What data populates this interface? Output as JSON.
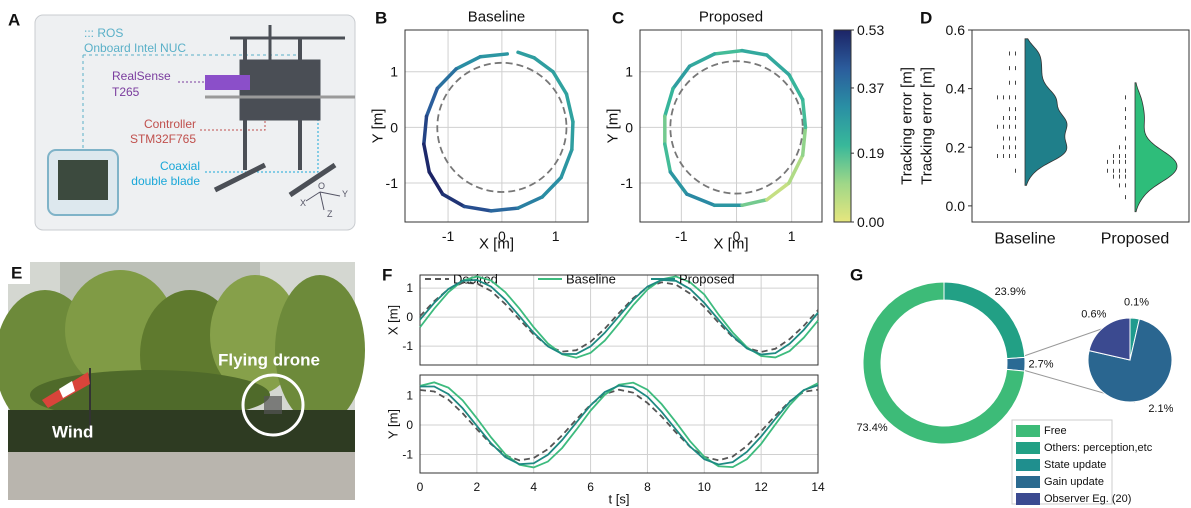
{
  "panel_a": {
    "letter": "A",
    "ros": "::: ROS",
    "nuc": "Onboard Intel NUC",
    "camera": [
      "RealSense",
      "T265"
    ],
    "controller": [
      "Controller",
      "STM32F765"
    ],
    "blade": [
      "Coaxial",
      "double blade"
    ],
    "frame_axes": [
      "O",
      "X",
      "Y",
      "Z"
    ]
  },
  "panel_e": {
    "letter": "E",
    "wind": "Wind",
    "drone": "Flying drone"
  },
  "chart_data": [
    {
      "type": "trajectory",
      "panel": "B",
      "title": "Baseline",
      "xlabel": "X [m]",
      "ylabel": "Y [m]",
      "xlim": [
        -1.8,
        1.6
      ],
      "ylim": [
        -1.7,
        1.75
      ],
      "xticks": [
        -1,
        0,
        1
      ],
      "yticks": [
        -1,
        0,
        1
      ],
      "grid": true,
      "desired_radius": 1.2,
      "clim": [
        0,
        0.53
      ],
      "colormap": [
        "#e6e67e",
        "#9fd788",
        "#38b89a",
        "#2a8fa4",
        "#2b5c9c",
        "#1c2466"
      ],
      "x": [
        0.1,
        -0.4,
        -0.85,
        -1.2,
        -1.4,
        -1.45,
        -1.35,
        -1.1,
        -0.7,
        -0.2,
        0.3,
        0.75,
        1.1,
        1.3,
        1.32,
        1.2,
        0.95,
        0.6,
        0.3
      ],
      "values": [
        1.32,
        1.27,
        1.05,
        0.7,
        0.2,
        -0.3,
        -0.8,
        -1.2,
        -1.42,
        -1.5,
        -1.45,
        -1.25,
        -0.9,
        -0.4,
        0.1,
        0.6,
        1.0,
        1.25,
        1.35
      ],
      "error": [
        0.3,
        0.32,
        0.38,
        0.42,
        0.47,
        0.52,
        0.53,
        0.5,
        0.45,
        0.4,
        0.35,
        0.32,
        0.3,
        0.28,
        0.27,
        0.27,
        0.28,
        0.28,
        0.29
      ]
    },
    {
      "type": "trajectory",
      "panel": "C",
      "title": "Proposed",
      "xlabel": "X [m]",
      "ylabel": "Y [m]",
      "xlim": [
        -1.75,
        1.55
      ],
      "ylim": [
        -1.7,
        1.75
      ],
      "xticks": [
        -1,
        0,
        1
      ],
      "yticks": [
        -1,
        0,
        1
      ],
      "grid": true,
      "desired_radius": 1.2,
      "clim": [
        0,
        0.53
      ],
      "colormap": [
        "#e6e67e",
        "#9fd788",
        "#38b89a",
        "#2a8fa4",
        "#2b5c9c",
        "#1c2466"
      ],
      "colorbar": {
        "ticks": [
          {
            "value": 0,
            "label": "0.00"
          },
          0.19,
          0.37,
          0.53
        ]
      },
      "x": [
        0.1,
        -0.4,
        -0.85,
        -1.15,
        -1.3,
        -1.3,
        -1.2,
        -0.9,
        -0.4,
        0.1,
        0.55,
        0.95,
        1.2,
        1.25,
        1.2,
        0.95,
        0.55,
        0.1
      ],
      "values": [
        1.38,
        1.32,
        1.1,
        0.7,
        0.2,
        -0.3,
        -0.8,
        -1.2,
        -1.4,
        -1.4,
        -1.3,
        -1.0,
        -0.5,
        0.0,
        0.5,
        0.95,
        1.3,
        1.38
      ],
      "error": [
        0.2,
        0.25,
        0.28,
        0.22,
        0.15,
        0.2,
        0.3,
        0.33,
        0.3,
        0.15,
        0.05,
        0.08,
        0.12,
        0.2,
        0.22,
        0.25,
        0.25,
        0.22
      ]
    },
    {
      "type": "violin",
      "panel": "D",
      "ylabels": [
        "Tracking error [m]",
        "Tracking error [m]"
      ],
      "ylim": [
        -0.055,
        0.6
      ],
      "yticks": [
        {
          "value": 0,
          "label": "0.0"
        },
        0.2,
        0.4,
        0.6
      ],
      "categories": [
        "Baseline",
        "Proposed"
      ],
      "series": [
        {
          "color": "#1f7f8a",
          "values": [
            0.12,
            0.17,
            0.17,
            0.17,
            0.17,
            0.2,
            0.2,
            0.2,
            0.23,
            0.23,
            0.23,
            0.27,
            0.27,
            0.27,
            0.27,
            0.3,
            0.3,
            0.3,
            0.33,
            0.33,
            0.37,
            0.37,
            0.37,
            0.37,
            0.42,
            0.42,
            0.47,
            0.47,
            0.52,
            0.52
          ]
        },
        {
          "color": "#2ebd7a",
          "values": [
            0.03,
            0.07,
            0.07,
            0.1,
            0.1,
            0.1,
            0.12,
            0.12,
            0.12,
            0.12,
            0.15,
            0.15,
            0.15,
            0.15,
            0.17,
            0.17,
            0.17,
            0.2,
            0.2,
            0.23,
            0.27,
            0.3,
            0.33,
            0.37
          ]
        }
      ]
    },
    {
      "type": "line",
      "panel": "F",
      "ylabel": "X [m]",
      "xlim": [
        0,
        14
      ],
      "ylim": [
        -1.65,
        1.45
      ],
      "xticks": [
        0,
        2,
        4,
        6,
        8,
        10,
        12,
        14
      ],
      "yticks": [
        -1,
        0,
        1
      ],
      "grid": true,
      "show_xticklabels": false,
      "x": [
        0,
        0.5,
        1,
        1.5,
        2,
        2.5,
        3,
        3.5,
        4,
        4.5,
        5,
        5.5,
        6,
        6.5,
        7,
        7.5,
        8,
        8.5,
        9,
        9.5,
        10,
        10.5,
        11,
        11.5,
        12,
        12.5,
        13,
        13.5,
        14
      ],
      "series": [
        {
          "name": "Desired",
          "color": "#555555",
          "linestyle": "dashed",
          "values": [
            0.03,
            0.55,
            0.96,
            1.18,
            1.16,
            0.9,
            0.45,
            -0.08,
            -0.6,
            -1.0,
            -1.19,
            -1.14,
            -0.85,
            -0.4,
            0.14,
            0.65,
            1.03,
            1.2,
            1.12,
            0.81,
            0.35,
            -0.19,
            -0.69,
            -1.06,
            -1.2,
            -1.09,
            -0.76,
            -0.3,
            0.24
          ]
        },
        {
          "name": "Baseline",
          "color": "#3dbb7e",
          "linestyle": "solid",
          "values": [
            -0.35,
            0.29,
            0.86,
            1.26,
            1.4,
            1.26,
            0.86,
            0.29,
            -0.35,
            -0.91,
            -1.28,
            -1.4,
            -1.23,
            -0.81,
            -0.22,
            0.41,
            0.95,
            1.3,
            1.4,
            1.2,
            0.78,
            0.09,
            -0.53,
            -1.04,
            -1.34,
            -1.39,
            -1.17,
            -0.71,
            -0.12
          ]
        },
        {
          "name": "Proposed",
          "color": "#1e8a82",
          "linestyle": "solid",
          "values": [
            -0.09,
            0.49,
            0.97,
            1.25,
            1.28,
            1.05,
            0.6,
            0.03,
            -0.54,
            -1.01,
            -1.27,
            -1.27,
            -1.01,
            -0.54,
            0.03,
            0.6,
            1.05,
            1.28,
            1.25,
            0.97,
            0.49,
            -0.09,
            -0.65,
            -1.08,
            -1.29,
            -1.24,
            -0.92,
            -0.44,
            0.15
          ]
        }
      ]
    },
    {
      "type": "line",
      "ylabel": "Y [m]",
      "xlabel": "t [s]",
      "xlim": [
        0,
        14
      ],
      "ylim": [
        -1.63,
        1.7
      ],
      "xticks": [
        0,
        2,
        4,
        6,
        8,
        10,
        12,
        14
      ],
      "yticks": [
        -1,
        0,
        1
      ],
      "grid": true,
      "x": [
        0,
        0.5,
        1,
        1.5,
        2,
        2.5,
        3,
        3.5,
        4,
        4.5,
        5,
        5.5,
        6,
        6.5,
        7,
        7.5,
        8,
        8.5,
        9,
        9.5,
        10,
        10.5,
        11,
        11.5,
        12,
        12.5,
        13,
        13.5,
        14
      ],
      "series": [
        {
          "color": "#555555",
          "linestyle": "dashed",
          "values": [
            1.19,
            1.14,
            0.86,
            0.4,
            -0.14,
            -0.65,
            -1.03,
            -1.2,
            -1.12,
            -0.82,
            -0.35,
            0.19,
            0.69,
            1.05,
            1.2,
            1.1,
            0.75,
            0.29,
            -0.25,
            -0.74,
            -1.08,
            -1.2,
            -1.07,
            -0.71,
            -0.21,
            0.32,
            0.8,
            1.13,
            1.2
          ]
        },
        {
          "color": "#3dbb7e",
          "linestyle": "solid",
          "values": [
            1.33,
            1.45,
            1.27,
            0.84,
            0.23,
            -0.42,
            -0.99,
            -1.35,
            -1.44,
            -1.24,
            -0.78,
            -0.16,
            0.49,
            1.03,
            1.37,
            1.44,
            1.2,
            0.71,
            0.1,
            -0.55,
            -1.08,
            -1.4,
            -1.43,
            -1.16,
            -0.64,
            0.02,
            0.67,
            1.18,
            1.42
          ]
        },
        {
          "color": "#1e8a82",
          "linestyle": "solid",
          "values": [
            1.31,
            1.31,
            1.05,
            0.57,
            -0.03,
            -0.62,
            -1.09,
            -1.33,
            -1.3,
            -1.01,
            -0.51,
            0.09,
            0.67,
            1.12,
            1.34,
            1.28,
            0.96,
            0.45,
            -0.15,
            -0.73,
            -1.16,
            -1.34,
            -1.26,
            -0.91,
            -0.39,
            0.21,
            0.78,
            1.19,
            1.35
          ]
        }
      ]
    },
    {
      "type": "donut",
      "panel": "G",
      "donut": {
        "values": [
          23.9,
          2.7,
          73.4
        ],
        "value_labels": [
          "23.9%",
          "2.7%",
          "73.4%"
        ],
        "colors": [
          "#22a085",
          "#2a6a94",
          "#3dbb78"
        ]
      },
      "pie": {
        "values": [
          0.1,
          2.1,
          0.6
        ],
        "value_labels": [
          "0.1%",
          "2.1%",
          "0.6%"
        ],
        "colors": [
          "#1f9b8e",
          "#2a6690",
          "#3b4a90"
        ]
      },
      "legend": {
        "names": [
          "Free",
          "Others: perception,etc",
          "State update",
          "Gain update",
          "Observer Eg. (20)"
        ],
        "colors": [
          "#3dbb78",
          "#22a085",
          "#1f8f8e",
          "#2a6a8f",
          "#3b4a90"
        ]
      }
    }
  ]
}
